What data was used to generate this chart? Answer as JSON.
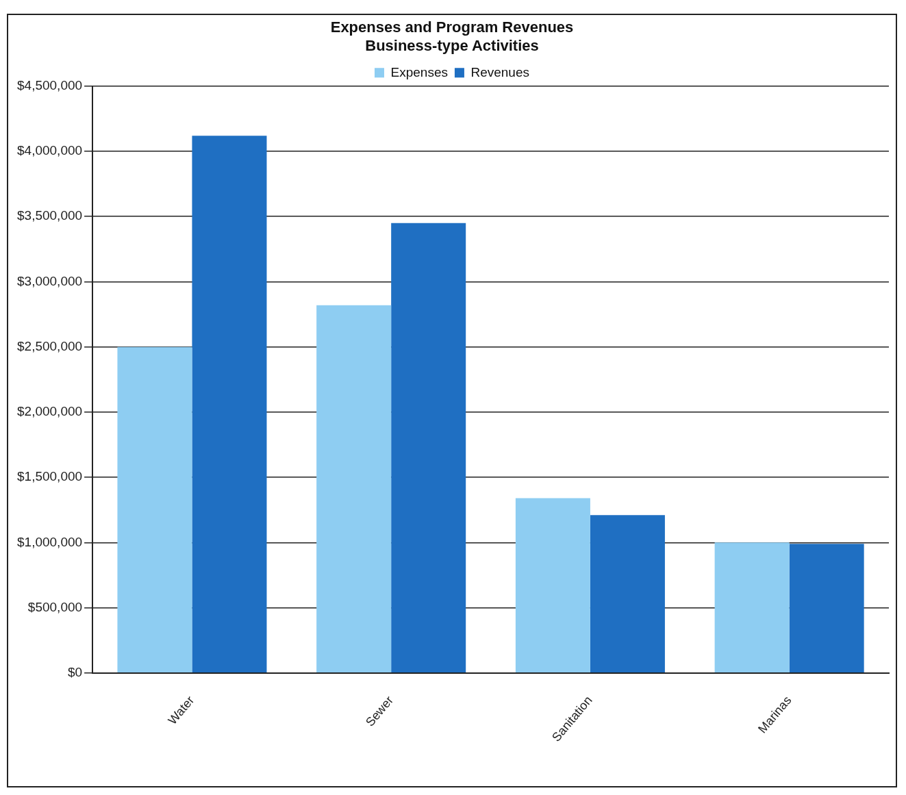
{
  "chart_data": {
    "type": "bar",
    "title": [
      "Expenses and Program Revenues",
      "Business-type Activities"
    ],
    "categories": [
      "Water",
      "Sewer",
      "Sanitation",
      "Marinas"
    ],
    "series": [
      {
        "name": "Expenses",
        "color": "#8ecdf2",
        "values": [
          2500000,
          2820000,
          1340000,
          1000000
        ]
      },
      {
        "name": "Revenues",
        "color": "#1f6fc2",
        "values": [
          4120000,
          3450000,
          1210000,
          990000
        ]
      }
    ],
    "ylim": [
      0,
      4500000
    ],
    "yticks": [
      {
        "value": 0,
        "label": "$0"
      },
      {
        "value": 500000,
        "label": "$500,000"
      },
      {
        "value": 1000000,
        "label": "$1,000,000"
      },
      {
        "value": 1500000,
        "label": "$1,500,000"
      },
      {
        "value": 2000000,
        "label": "$2,000,000"
      },
      {
        "value": 2500000,
        "label": "$2,500,000"
      },
      {
        "value": 3000000,
        "label": "$3,000,000"
      },
      {
        "value": 3500000,
        "label": "$3,500,000"
      },
      {
        "value": 4000000,
        "label": "$4,000,000"
      },
      {
        "value": 4500000,
        "label": "$4,500,000"
      }
    ],
    "grid": "y",
    "legend": "top"
  }
}
